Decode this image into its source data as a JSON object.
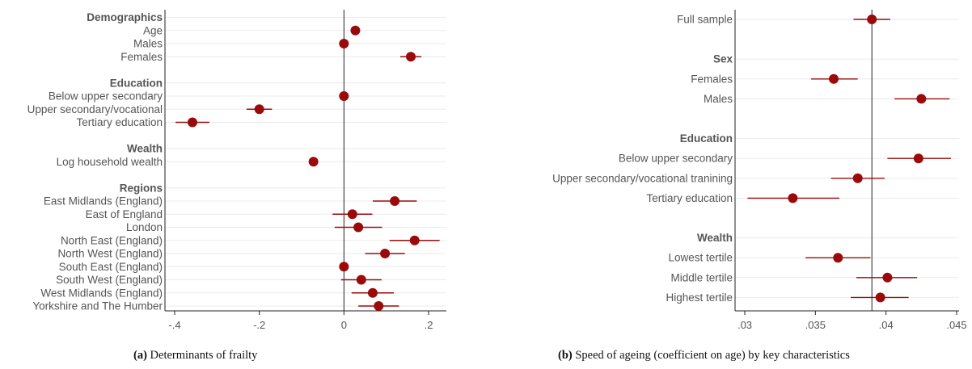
{
  "colors": {
    "marker": "#9b0a0a",
    "axis": "#222222",
    "grid": "#ebebeb",
    "text": "#555555"
  },
  "captions": {
    "a_tag": "(a)",
    "a_text": "Determinants of frailty",
    "b_tag": "(b)",
    "b_text": "Speed of ageing (coefficient on age) by key characteristics"
  },
  "chart_data": [
    {
      "type": "scatter",
      "subtype": "coefficient-plot",
      "title": "",
      "xlabel": "",
      "ylabel": "",
      "xlim": [
        -0.4,
        0.2
      ],
      "xticks": [
        -0.4,
        -0.2,
        0,
        0.2
      ],
      "xtick_labels": [
        "-.4",
        "-.2",
        "0",
        ".2"
      ],
      "reference_line": 0,
      "rows": [
        {
          "label": "Demographics",
          "header": true
        },
        {
          "label": "Age",
          "value": 0.027
        },
        {
          "label": "Males",
          "value": 0.0
        },
        {
          "label": "Females",
          "value": 0.158,
          "lo": 0.133,
          "hi": 0.183
        },
        {
          "label": "",
          "spacer": true
        },
        {
          "label": "Education",
          "header": true
        },
        {
          "label": "Below upper secondary",
          "value": 0.0
        },
        {
          "label": "Upper secondary/vocational",
          "value": -0.2,
          "lo": -0.23,
          "hi": -0.17
        },
        {
          "label": "Tertiary education",
          "value": -0.358,
          "lo": -0.398,
          "hi": -0.318
        },
        {
          "label": "",
          "spacer": true
        },
        {
          "label": "Wealth",
          "header": true
        },
        {
          "label": "Log household wealth",
          "value": -0.072
        },
        {
          "label": "",
          "spacer": true
        },
        {
          "label": "Regions",
          "header": true
        },
        {
          "label": "East Midlands (England)",
          "value": 0.12,
          "lo": 0.068,
          "hi": 0.172
        },
        {
          "label": "East of England",
          "value": 0.02,
          "lo": -0.027,
          "hi": 0.067
        },
        {
          "label": "London",
          "value": 0.034,
          "lo": -0.022,
          "hi": 0.09
        },
        {
          "label": "North East (England)",
          "value": 0.167,
          "lo": 0.108,
          "hi": 0.226
        },
        {
          "label": "North West (England)",
          "value": 0.097,
          "lo": 0.05,
          "hi": 0.144
        },
        {
          "label": "South East (England)",
          "value": 0.0
        },
        {
          "label": "South West (England)",
          "value": 0.041,
          "lo": -0.007,
          "hi": 0.089
        },
        {
          "label": "West Midlands (England)",
          "value": 0.068,
          "lo": 0.018,
          "hi": 0.118
        },
        {
          "label": "Yorkshire and The Humber",
          "value": 0.082,
          "lo": 0.034,
          "hi": 0.13
        }
      ]
    },
    {
      "type": "scatter",
      "subtype": "coefficient-plot",
      "title": "",
      "xlabel": "",
      "ylabel": "",
      "xlim": [
        0.03,
        0.045
      ],
      "xticks": [
        0.03,
        0.035,
        0.04,
        0.045
      ],
      "xtick_labels": [
        ".03",
        ".035",
        ".04",
        ".045"
      ],
      "reference_line": 0.039,
      "rows": [
        {
          "label": "Full sample",
          "value": 0.039,
          "lo": 0.0377,
          "hi": 0.0403
        },
        {
          "label": "",
          "spacer": true
        },
        {
          "label": "Sex",
          "header": true
        },
        {
          "label": "Females",
          "value": 0.0363,
          "lo": 0.0347,
          "hi": 0.038
        },
        {
          "label": "Males",
          "value": 0.0425,
          "lo": 0.0406,
          "hi": 0.0445
        },
        {
          "label": "",
          "spacer": true
        },
        {
          "label": "Education",
          "header": true
        },
        {
          "label": "Below upper secondary",
          "value": 0.0423,
          "lo": 0.0401,
          "hi": 0.0446
        },
        {
          "label": "Upper secondary/vocational tranining",
          "value": 0.038,
          "lo": 0.0361,
          "hi": 0.0399
        },
        {
          "label": "Tertiary education",
          "value": 0.0334,
          "lo": 0.0302,
          "hi": 0.0367
        },
        {
          "label": "",
          "spacer": true
        },
        {
          "label": "Wealth",
          "header": true
        },
        {
          "label": "Lowest tertile",
          "value": 0.0366,
          "lo": 0.0343,
          "hi": 0.0389
        },
        {
          "label": "Middle tertile",
          "value": 0.0401,
          "lo": 0.0379,
          "hi": 0.0422
        },
        {
          "label": "Highest tertile",
          "value": 0.0396,
          "lo": 0.0375,
          "hi": 0.0416
        }
      ]
    }
  ]
}
